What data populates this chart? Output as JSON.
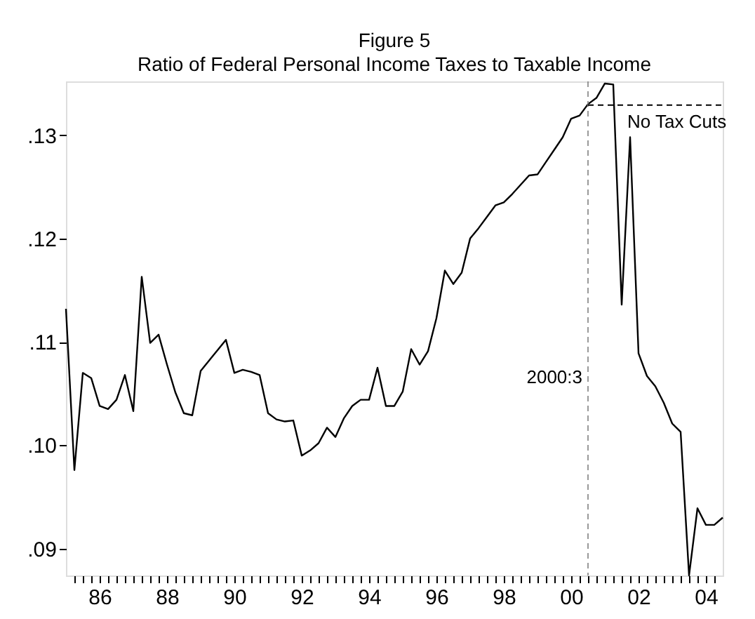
{
  "chart_data": {
    "type": "line",
    "title": "Figure 5",
    "subtitle": "Ratio of Federal Personal Income Taxes to Taxable Income",
    "x": [
      1985,
      1985.25,
      1985.5,
      1985.75,
      1986,
      1986.25,
      1986.5,
      1986.75,
      1987,
      1987.25,
      1987.5,
      1987.75,
      1988,
      1988.25,
      1988.5,
      1988.75,
      1989,
      1989.25,
      1989.5,
      1989.75,
      1990,
      1990.25,
      1990.5,
      1990.75,
      1991,
      1991.25,
      1991.5,
      1991.75,
      1992,
      1992.25,
      1992.5,
      1992.75,
      1993,
      1993.25,
      1993.5,
      1993.75,
      1994,
      1994.25,
      1994.5,
      1994.75,
      1995,
      1995.25,
      1995.5,
      1995.75,
      1996,
      1996.25,
      1996.5,
      1996.75,
      1997,
      1997.25,
      1997.5,
      1997.75,
      1998,
      1998.25,
      1998.5,
      1998.75,
      1999,
      1999.25,
      1999.5,
      1999.75,
      2000,
      2000.25,
      2000.5,
      2000.75,
      2001,
      2001.25,
      2001.5,
      2001.75,
      2002,
      2002.25,
      2002.5,
      2002.75,
      2003,
      2003.25,
      2003.5,
      2003.75,
      2004,
      2004.25,
      2004.5
    ],
    "series": [
      {
        "color": "#000000",
        "values": [
          0.1132,
          0.0976,
          0.107,
          0.1065,
          0.1038,
          0.1035,
          0.1044,
          0.1068,
          0.1033,
          0.1163,
          0.1099,
          0.1107,
          0.1078,
          0.1051,
          0.1031,
          0.1029,
          0.1072,
          0.1082,
          0.1092,
          0.1102,
          0.107,
          0.1073,
          0.1071,
          0.1068,
          0.1031,
          0.1025,
          0.1023,
          0.1024,
          0.099,
          0.0995,
          0.1002,
          0.1017,
          0.1008,
          0.1026,
          0.1038,
          0.1044,
          0.1044,
          0.1075,
          0.1038,
          0.1038,
          0.1052,
          0.1093,
          0.1078,
          0.1091,
          0.1123,
          0.1169,
          0.1156,
          0.1167,
          0.12,
          0.121,
          0.1221,
          0.1232,
          0.1235,
          0.1243,
          0.1252,
          0.1261,
          0.1262,
          0.1274,
          0.1286,
          0.1298,
          0.1316,
          0.1319,
          0.133,
          0.1336,
          0.135,
          0.1349,
          0.1136,
          0.1298,
          0.1089,
          0.1067,
          0.1057,
          0.1041,
          0.1021,
          0.1013,
          0.0874,
          0.0939,
          0.0923,
          0.0923,
          0.093
        ]
      }
    ],
    "xlim": [
      1985,
      2004.5
    ],
    "xticks": [
      {
        "value": 1985.25,
        "label": null
      },
      {
        "value": 1985.5,
        "label": null
      },
      {
        "value": 1985.75,
        "label": null
      },
      {
        "value": 1986,
        "label": "86"
      },
      {
        "value": 1986.25,
        "label": null
      },
      {
        "value": 1986.5,
        "label": null
      },
      {
        "value": 1986.75,
        "label": null
      },
      {
        "value": 1987,
        "label": null
      },
      {
        "value": 1987.25,
        "label": null
      },
      {
        "value": 1987.5,
        "label": null
      },
      {
        "value": 1987.75,
        "label": null
      },
      {
        "value": 1988,
        "label": "88"
      },
      {
        "value": 1988.25,
        "label": null
      },
      {
        "value": 1988.5,
        "label": null
      },
      {
        "value": 1988.75,
        "label": null
      },
      {
        "value": 1989,
        "label": null
      },
      {
        "value": 1989.25,
        "label": null
      },
      {
        "value": 1989.5,
        "label": null
      },
      {
        "value": 1989.75,
        "label": null
      },
      {
        "value": 1990,
        "label": "90"
      },
      {
        "value": 1990.25,
        "label": null
      },
      {
        "value": 1990.5,
        "label": null
      },
      {
        "value": 1990.75,
        "label": null
      },
      {
        "value": 1991,
        "label": null
      },
      {
        "value": 1991.25,
        "label": null
      },
      {
        "value": 1991.5,
        "label": null
      },
      {
        "value": 1991.75,
        "label": null
      },
      {
        "value": 1992,
        "label": "92"
      },
      {
        "value": 1992.25,
        "label": null
      },
      {
        "value": 1992.5,
        "label": null
      },
      {
        "value": 1992.75,
        "label": null
      },
      {
        "value": 1993,
        "label": null
      },
      {
        "value": 1993.25,
        "label": null
      },
      {
        "value": 1993.5,
        "label": null
      },
      {
        "value": 1993.75,
        "label": null
      },
      {
        "value": 1994,
        "label": "94"
      },
      {
        "value": 1994.25,
        "label": null
      },
      {
        "value": 1994.5,
        "label": null
      },
      {
        "value": 1994.75,
        "label": null
      },
      {
        "value": 1995,
        "label": null
      },
      {
        "value": 1995.25,
        "label": null
      },
      {
        "value": 1995.5,
        "label": null
      },
      {
        "value": 1995.75,
        "label": null
      },
      {
        "value": 1996,
        "label": "96"
      },
      {
        "value": 1996.25,
        "label": null
      },
      {
        "value": 1996.5,
        "label": null
      },
      {
        "value": 1996.75,
        "label": null
      },
      {
        "value": 1997,
        "label": null
      },
      {
        "value": 1997.25,
        "label": null
      },
      {
        "value": 1997.5,
        "label": null
      },
      {
        "value": 1997.75,
        "label": null
      },
      {
        "value": 1998,
        "label": "98"
      },
      {
        "value": 1998.25,
        "label": null
      },
      {
        "value": 1998.5,
        "label": null
      },
      {
        "value": 1998.75,
        "label": null
      },
      {
        "value": 1999,
        "label": null
      },
      {
        "value": 1999.25,
        "label": null
      },
      {
        "value": 1999.5,
        "label": null
      },
      {
        "value": 1999.75,
        "label": null
      },
      {
        "value": 2000,
        "label": "00"
      },
      {
        "value": 2000.25,
        "label": null
      },
      {
        "value": 2000.5,
        "label": null
      },
      {
        "value": 2000.75,
        "label": null
      },
      {
        "value": 2001,
        "label": null
      },
      {
        "value": 2001.25,
        "label": null
      },
      {
        "value": 2001.5,
        "label": null
      },
      {
        "value": 2001.75,
        "label": null
      },
      {
        "value": 2002,
        "label": "02"
      },
      {
        "value": 2002.25,
        "label": null
      },
      {
        "value": 2002.5,
        "label": null
      },
      {
        "value": 2002.75,
        "label": null
      },
      {
        "value": 2003,
        "label": null
      },
      {
        "value": 2003.25,
        "label": null
      },
      {
        "value": 2003.5,
        "label": null
      },
      {
        "value": 2003.75,
        "label": null
      },
      {
        "value": 2004,
        "label": "04"
      },
      {
        "value": 2004.25,
        "label": null
      }
    ],
    "ylim": [
      0.0874,
      0.1352
    ],
    "yticks": [
      {
        "value": 0.09,
        "label": ".09"
      },
      {
        "value": 0.1,
        "label": ".10"
      },
      {
        "value": 0.11,
        "label": ".11"
      },
      {
        "value": 0.12,
        "label": ".12"
      },
      {
        "value": 0.13,
        "label": ".13"
      }
    ],
    "ref_lines": [
      {
        "axis": "x",
        "value": 2000.5,
        "label": "2000:3",
        "color": "#808080",
        "line_style": "dashed"
      },
      {
        "axis": "y",
        "value": 0.1329,
        "label": "No Tax Cuts",
        "color": "#000000",
        "line_style": "dashed"
      }
    ],
    "grid": false,
    "line_style": "solid",
    "marker": "none"
  }
}
